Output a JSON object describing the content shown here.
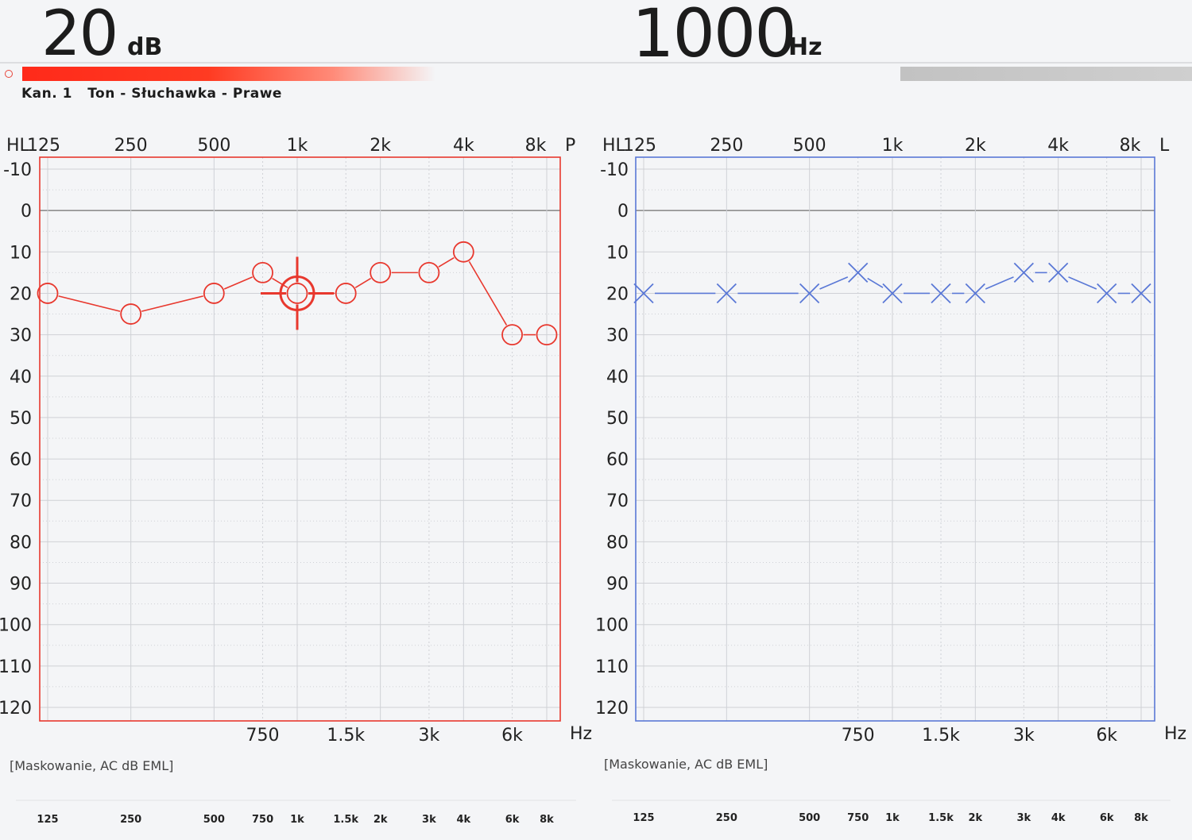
{
  "readout": {
    "level_value": "20",
    "level_unit": "dB",
    "frequency_value": "1000",
    "frequency_unit": "Hz"
  },
  "channel_label": "Kan. 1   Ton - Słuchawka - Prawe",
  "level_bar_percent": 37,
  "colors": {
    "right_ear": "#e8382e",
    "left_ear": "#5a78d6",
    "grid": "#cfd1d6",
    "zero_line": "#6f6f6f"
  },
  "chart_data": [
    {
      "type": "line",
      "name": "right-audiogram",
      "corner_label": "HL",
      "ear_label": "P",
      "unit_label": "Hz",
      "masking_label": "[Maskowanie, AC dB EML]",
      "top_freq_labels": [
        "125",
        "250",
        "500",
        "1k",
        "2k",
        "4k",
        "8k"
      ],
      "mid_freq_labels": [
        "750",
        "1.5k",
        "3k",
        "6k"
      ],
      "bottom_freq_labels": [
        "125",
        "250",
        "500",
        "750",
        "1k",
        "1.5k",
        "2k",
        "3k",
        "4k",
        "6k",
        "8k"
      ],
      "y_tick_labels": [
        "-10",
        "0",
        "10",
        "20",
        "30",
        "40",
        "50",
        "60",
        "70",
        "80",
        "90",
        "100",
        "110",
        "120"
      ],
      "ylim": [
        -10,
        120
      ],
      "x": [
        125,
        250,
        500,
        750,
        1000,
        1500,
        2000,
        3000,
        4000,
        6000,
        8000
      ],
      "values": [
        20,
        25,
        20,
        15,
        20,
        20,
        15,
        15,
        10,
        30,
        30
      ],
      "marker": "circle",
      "cursor": {
        "freq": 1000,
        "level": 20
      }
    },
    {
      "type": "line",
      "name": "left-audiogram",
      "corner_label": "HL",
      "ear_label": "L",
      "unit_label": "Hz",
      "masking_label": "[Maskowanie, AC dB EML]",
      "top_freq_labels": [
        "125",
        "250",
        "500",
        "1k",
        "2k",
        "4k",
        "8k"
      ],
      "mid_freq_labels": [
        "750",
        "1.5k",
        "3k",
        "6k"
      ],
      "bottom_freq_labels": [
        "125",
        "250",
        "500",
        "750",
        "1k",
        "1.5k",
        "2k",
        "3k",
        "4k",
        "6k",
        "8k"
      ],
      "y_tick_labels": [
        "-10",
        "0",
        "10",
        "20",
        "30",
        "40",
        "50",
        "60",
        "70",
        "80",
        "90",
        "100",
        "110",
        "120"
      ],
      "ylim": [
        -10,
        120
      ],
      "x": [
        125,
        250,
        500,
        750,
        1000,
        1500,
        2000,
        3000,
        4000,
        6000,
        8000
      ],
      "values": [
        20,
        20,
        20,
        15,
        20,
        20,
        20,
        15,
        15,
        20,
        20
      ],
      "marker": "x"
    }
  ]
}
